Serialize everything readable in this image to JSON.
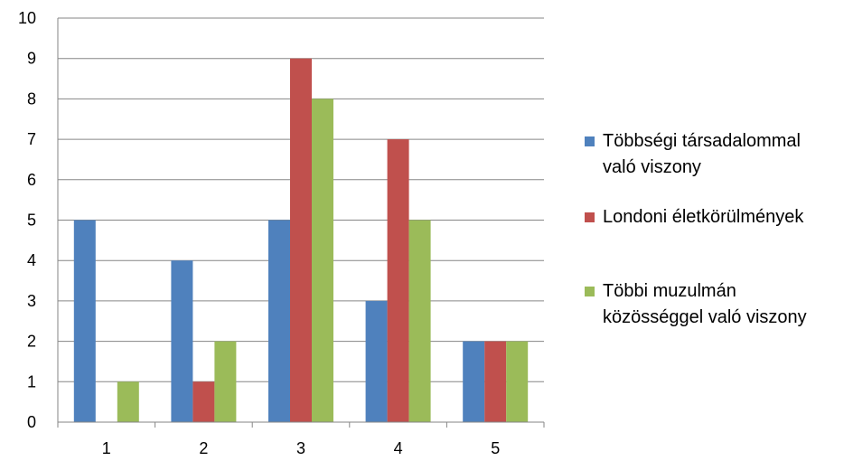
{
  "chart_data": {
    "type": "bar",
    "title": "",
    "xlabel": "",
    "ylabel": "",
    "categories": [
      "1",
      "2",
      "3",
      "4",
      "5"
    ],
    "ylim": [
      0,
      10
    ],
    "yticks": [
      "0",
      "1",
      "2",
      "3",
      "4",
      "5",
      "6",
      "7",
      "8",
      "9",
      "10"
    ],
    "grid": true,
    "legend_position": "right",
    "series": [
      {
        "name_lines": [
          "Többségi társadalommal",
          "való viszony"
        ],
        "color": "#4F81BD",
        "values": [
          5,
          4,
          5,
          3,
          2
        ]
      },
      {
        "name_lines": [
          "Londoni életkörülmények"
        ],
        "color": "#C0504D",
        "values": [
          0,
          1,
          9,
          7,
          2
        ]
      },
      {
        "name_lines": [
          "Többi muzulmán",
          "közösséggel való viszony"
        ],
        "color": "#9BBB59",
        "values": [
          1,
          2,
          8,
          5,
          2
        ]
      }
    ]
  }
}
